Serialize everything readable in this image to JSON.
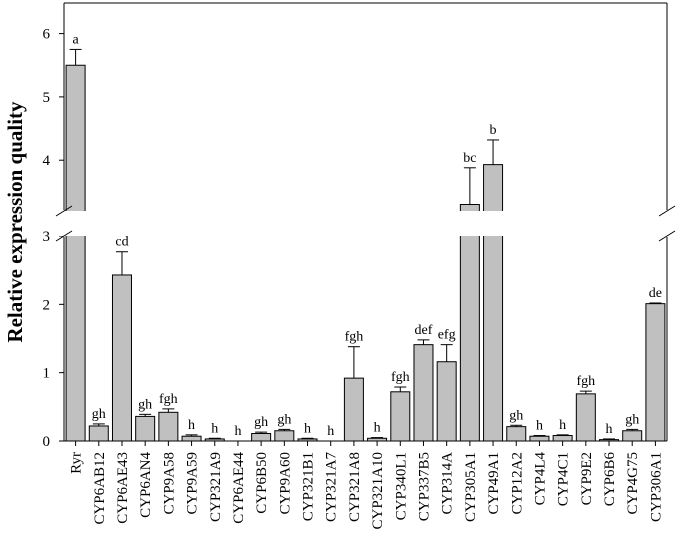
{
  "chart_data": {
    "type": "bar",
    "ylabel": "Relative expression quality",
    "y_axis_break": {
      "lower_range": [
        0,
        3
      ],
      "upper_range": [
        3,
        6.5
      ]
    },
    "lower_ticks": [
      "0",
      "1",
      "2",
      "3"
    ],
    "upper_ticks": [
      "4",
      "5",
      "6"
    ],
    "categories": [
      "Ryr",
      "CYP6AB12",
      "CYP6AE43",
      "CYP6AN4",
      "CYP9A58",
      "CYP9A59",
      "CYP321A9",
      "CYP6AE44",
      "CYP6B50",
      "CYP9A60",
      "CYP321B1",
      "CYP321A7",
      "CYP321A8",
      "CYP321A10",
      "CYP340L1",
      "CYP337B5",
      "CYP314A",
      "CYP305A1",
      "CYP49A1",
      "CYP12A2",
      "CYP4L4",
      "CYP4C1",
      "CYP9E2",
      "CYP6B6",
      "CYP4G75",
      "CYP306A1"
    ],
    "values": [
      5.5,
      0.22,
      2.43,
      0.36,
      0.42,
      0.07,
      0.03,
      0.0,
      0.11,
      0.15,
      0.03,
      0.0,
      0.92,
      0.04,
      0.72,
      1.41,
      1.16,
      3.3,
      3.93,
      0.21,
      0.07,
      0.08,
      0.69,
      0.02,
      0.15,
      2.01
    ],
    "errors": [
      0.25,
      0.03,
      0.34,
      0.03,
      0.05,
      0.02,
      0.01,
      0.0,
      0.02,
      0.02,
      0.01,
      0.0,
      0.46,
      0.01,
      0.07,
      0.07,
      0.25,
      0.58,
      0.39,
      0.02,
      0.01,
      0.01,
      0.04,
      0.01,
      0.02,
      0.01
    ],
    "significance_letters": [
      "a",
      "gh",
      "cd",
      "gh",
      "fgh",
      "h",
      "h",
      "h",
      "gh",
      "gh",
      "h",
      "h",
      "fgh",
      "h",
      "fgh",
      "def",
      "efg",
      "bc",
      "b",
      "gh",
      "h",
      "h",
      "fgh",
      "h",
      "gh",
      "de"
    ],
    "bar_color": "#c0c0c0",
    "grid": false
  }
}
